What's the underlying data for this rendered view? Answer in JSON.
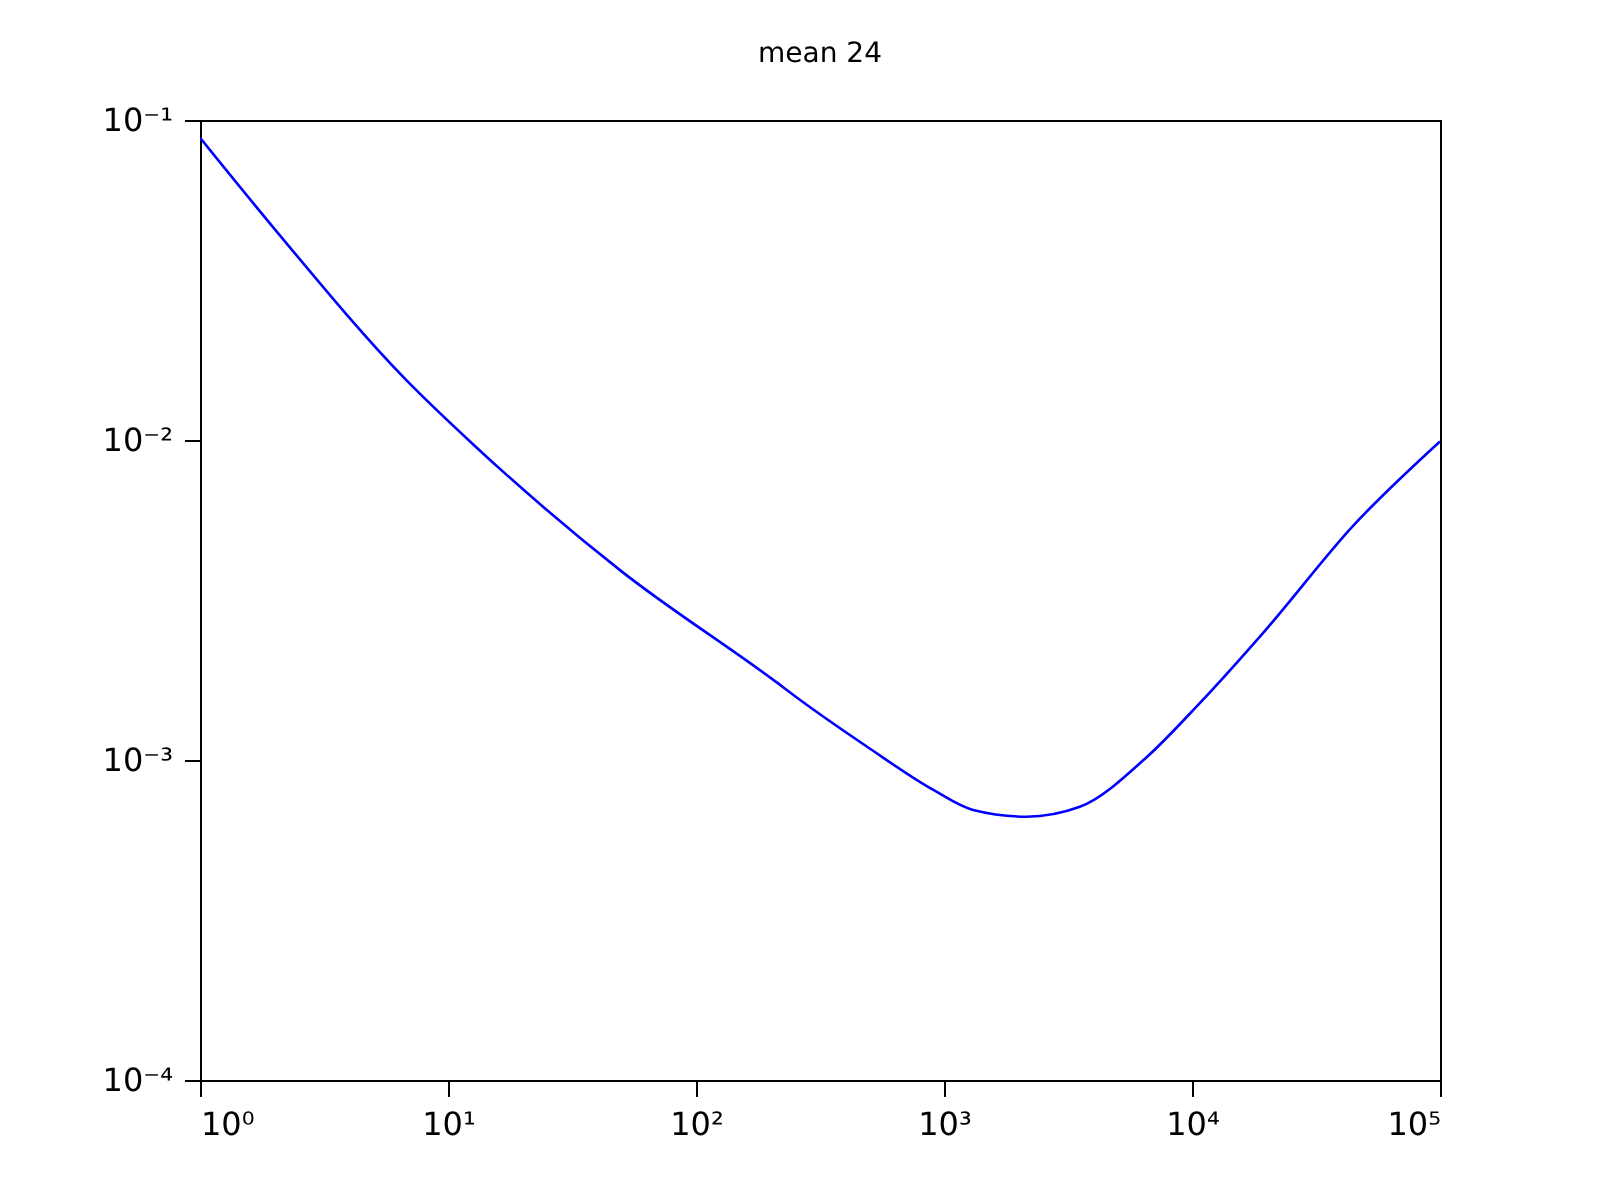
{
  "chart_data": {
    "type": "line",
    "title": "mean 24",
    "log": "xy",
    "grid": false,
    "x": [
      1,
      2,
      6.73,
      12.8,
      49.8,
      207,
      263,
      490,
      906,
      1310,
      2150,
      3530,
      6560,
      10700,
      20000,
      44700,
      100000
    ],
    "series": [
      {
        "color": "#0000ff",
        "values": [
          0.088,
          0.0456,
          0.0155,
          0.0096,
          0.0039,
          0.00177,
          0.00154,
          0.0011,
          0.000806,
          0.000698,
          0.000665,
          0.000714,
          0.00102,
          0.0015,
          0.00257,
          0.0054,
          0.0099
        ]
      }
    ],
    "xlim": [
      1,
      100000
    ],
    "ylim": [
      0.0001,
      0.1
    ],
    "xticks": [
      {
        "value": 1,
        "label": "10⁰"
      },
      {
        "value": 10,
        "label": "10¹"
      },
      {
        "value": 100,
        "label": "10²"
      },
      {
        "value": 1000,
        "label": "10³"
      },
      {
        "value": 10000,
        "label": "10⁴"
      },
      {
        "value": 100000,
        "label": "10⁵"
      }
    ],
    "yticks": [
      {
        "value": 0.0001,
        "label": "10⁻⁴"
      },
      {
        "value": 0.001,
        "label": "10⁻³"
      },
      {
        "value": 0.01,
        "label": "10⁻²"
      },
      {
        "value": 0.1,
        "label": "10⁻¹"
      }
    ]
  }
}
